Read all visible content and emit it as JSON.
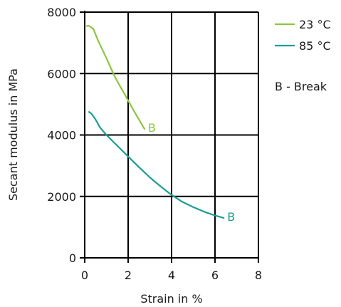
{
  "chart_data": {
    "type": "line",
    "xlabel": "Strain in %",
    "ylabel": "Secant modulus in MPa",
    "xlim": [
      0,
      8
    ],
    "ylim": [
      0,
      8000
    ],
    "x_ticks": [
      0,
      2,
      4,
      6,
      8
    ],
    "y_ticks": [
      0,
      2000,
      4000,
      6000,
      8000
    ],
    "x_tick_labels": [
      "0",
      "2",
      "4",
      "6",
      "8"
    ],
    "y_tick_labels": [
      "0",
      "2000",
      "4000",
      "6000",
      "8000"
    ],
    "grid": true,
    "legend_position": "right",
    "series": [
      {
        "name": "23 °C",
        "color": "#8cc63f",
        "end_label": "B",
        "x": [
          0.1,
          0.2,
          0.4,
          0.6,
          0.8,
          1.0,
          1.2,
          1.4,
          1.6,
          1.8,
          2.0,
          2.2,
          2.4,
          2.6,
          2.75
        ],
        "y": [
          7550,
          7550,
          7450,
          7100,
          6800,
          6500,
          6180,
          5880,
          5620,
          5380,
          5120,
          4870,
          4620,
          4380,
          4200
        ]
      },
      {
        "name": "85 °C",
        "color": "#1a9c96",
        "end_label": "B",
        "x": [
          0.2,
          0.3,
          0.5,
          0.7,
          1.0,
          1.5,
          2.0,
          2.5,
          3.0,
          3.5,
          4.0,
          4.5,
          5.0,
          5.5,
          6.0,
          6.4
        ],
        "y": [
          4750,
          4700,
          4500,
          4250,
          4000,
          3650,
          3300,
          2950,
          2620,
          2320,
          2050,
          1820,
          1650,
          1500,
          1380,
          1300
        ]
      }
    ],
    "notes": [
      "B - Break"
    ]
  }
}
